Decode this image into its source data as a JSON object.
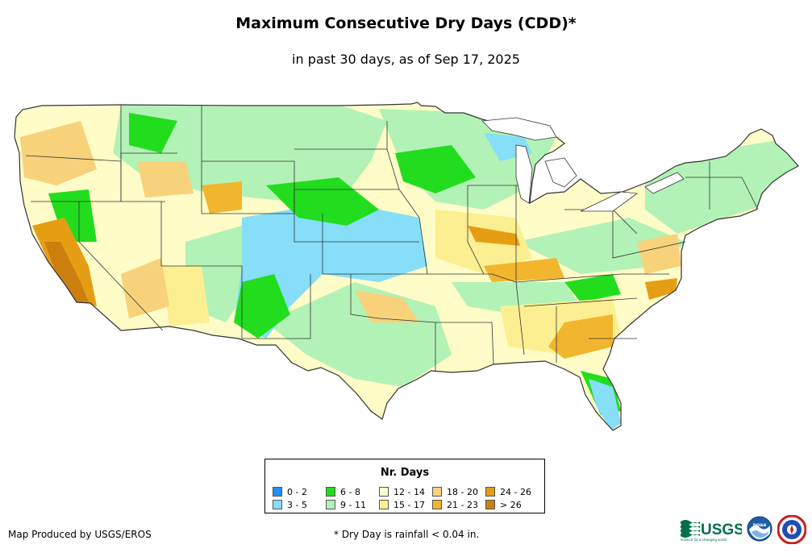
{
  "title": "Maximum Consecutive Dry Days (CDD)*",
  "subtitle": "in past 30 days, as of Sep 17, 2025",
  "legend": {
    "title": "Nr. Days",
    "items": [
      {
        "label": "0 - 2",
        "color": "#1e90ff"
      },
      {
        "label": "3 - 5",
        "color": "#86def8"
      },
      {
        "label": "6 - 8",
        "color": "#22dd1d"
      },
      {
        "label": "9 - 11",
        "color": "#b2f2b6"
      },
      {
        "label": "12 - 14",
        "color": "#fffcc8"
      },
      {
        "label": "15 - 17",
        "color": "#fcef92"
      },
      {
        "label": "18 - 20",
        "color": "#f7d27a"
      },
      {
        "label": "21 - 23",
        "color": "#f2b52e"
      },
      {
        "label": "24 - 26",
        "color": "#e59e14"
      },
      {
        "label": "> 26",
        "color": "#cc7f0f"
      }
    ]
  },
  "credit": "Map Produced by USGS/EROS",
  "footnote": "* Dry Day is rainfall < 0.04 in.",
  "logos": {
    "usgs": "USGS",
    "usgs_tagline": "science for a changing world",
    "noaa": "noaa",
    "nws_icon": "nws-seal"
  }
}
